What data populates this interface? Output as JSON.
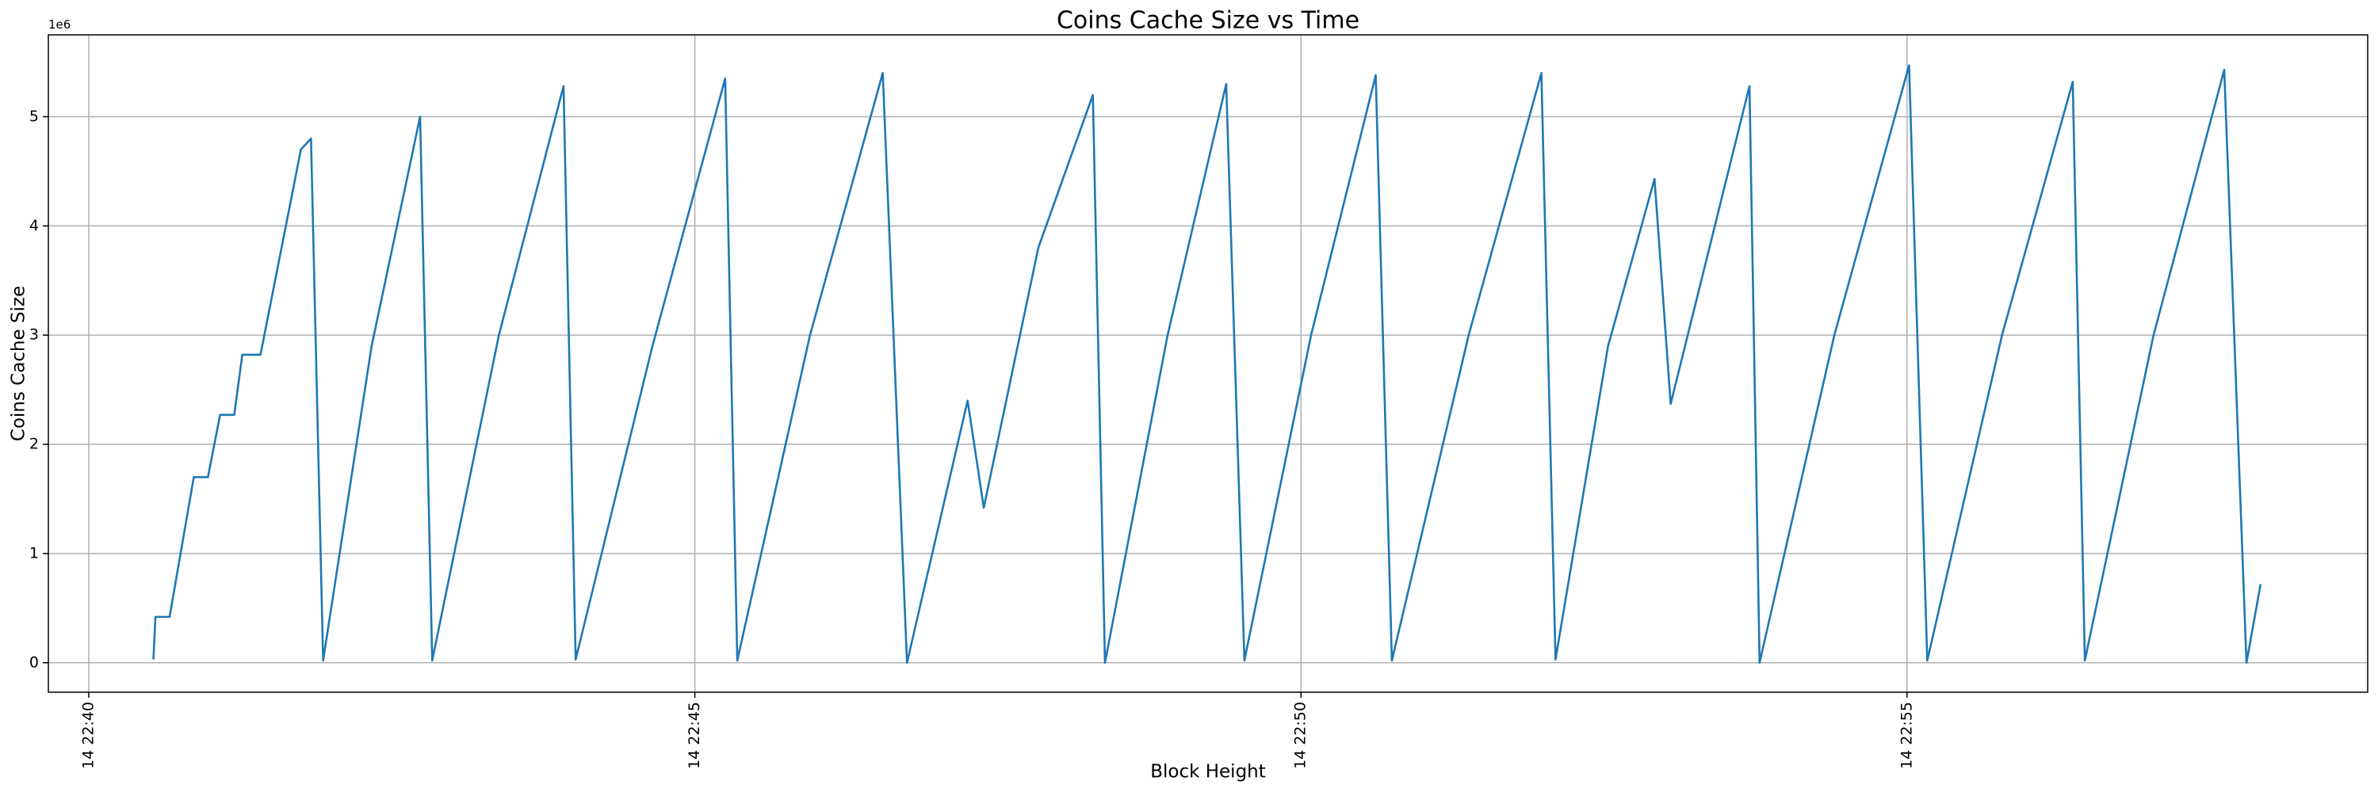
{
  "chart_data": {
    "type": "line",
    "title": "Coins Cache Size vs Time",
    "xlabel": "Block Height",
    "ylabel": "Coins Cache Size",
    "y_offset_label": "1e6",
    "x": [
      "14 22:40:32",
      "14 22:40:33",
      "14 22:40:40",
      "14 22:40:52",
      "14 22:40:59",
      "14 22:41:05",
      "14 22:41:12",
      "14 22:41:16",
      "14 22:41:25",
      "14 22:41:45",
      "14 22:41:50",
      "14 22:41:56",
      "14 22:42:20",
      "14 22:42:44",
      "14 22:42:50",
      "14 22:43:23",
      "14 22:43:55",
      "14 22:44:01",
      "14 22:44:39",
      "14 22:45:15",
      "14 22:45:21",
      "14 22:45:57",
      "14 22:46:33",
      "14 22:46:45",
      "14 22:47:15",
      "14 22:47:23",
      "14 22:47:50",
      "14 22:48:17",
      "14 22:48:23",
      "14 22:48:54",
      "14 22:49:23",
      "14 22:49:32",
      "14 22:50:05",
      "14 22:50:37",
      "14 22:50:45",
      "14 22:51:23",
      "14 22:51:59",
      "14 22:52:06",
      "14 22:52:32",
      "14 22:52:55",
      "14 22:53:03",
      "14 22:53:42",
      "14 22:53:47",
      "14 22:54:24",
      "14 22:55:01",
      "14 22:55:10",
      "14 22:55:47",
      "14 22:56:22",
      "14 22:56:28",
      "14 22:57:02",
      "14 22:57:37",
      "14 22:57:48",
      "14 22:57:55"
    ],
    "series": [
      {
        "color": "#1f77b4",
        "values": [
          0.03,
          0.42,
          0.42,
          1.7,
          1.7,
          2.27,
          2.27,
          2.82,
          2.82,
          4.7,
          4.8,
          0.02,
          2.9,
          5.0,
          0.02,
          3.0,
          5.28,
          0.03,
          2.9,
          5.35,
          0.02,
          3.0,
          5.4,
          0.0,
          2.4,
          1.42,
          3.8,
          5.2,
          0.0,
          3.0,
          5.3,
          0.02,
          3.0,
          5.38,
          0.02,
          3.0,
          5.4,
          0.03,
          2.9,
          4.43,
          2.37,
          5.28,
          0.0,
          3.0,
          5.47,
          0.02,
          3.0,
          5.32,
          0.02,
          3.0,
          5.43,
          0.0,
          0.72
        ]
      }
    ],
    "xlim": [
      "14 22:39:40",
      "14 22:58:48"
    ],
    "xticks": [
      {
        "value": "14 22:40:00",
        "label": "14 22:40"
      },
      {
        "value": "14 22:45:00",
        "label": "14 22:45"
      },
      {
        "value": "14 22:50:00",
        "label": "14 22:50"
      },
      {
        "value": "14 22:55:00",
        "label": "14 22:55"
      }
    ],
    "ylim": [
      -0.27,
      5.75
    ],
    "yticks": [
      0,
      1,
      2,
      3,
      4,
      5
    ],
    "grid": true
  }
}
